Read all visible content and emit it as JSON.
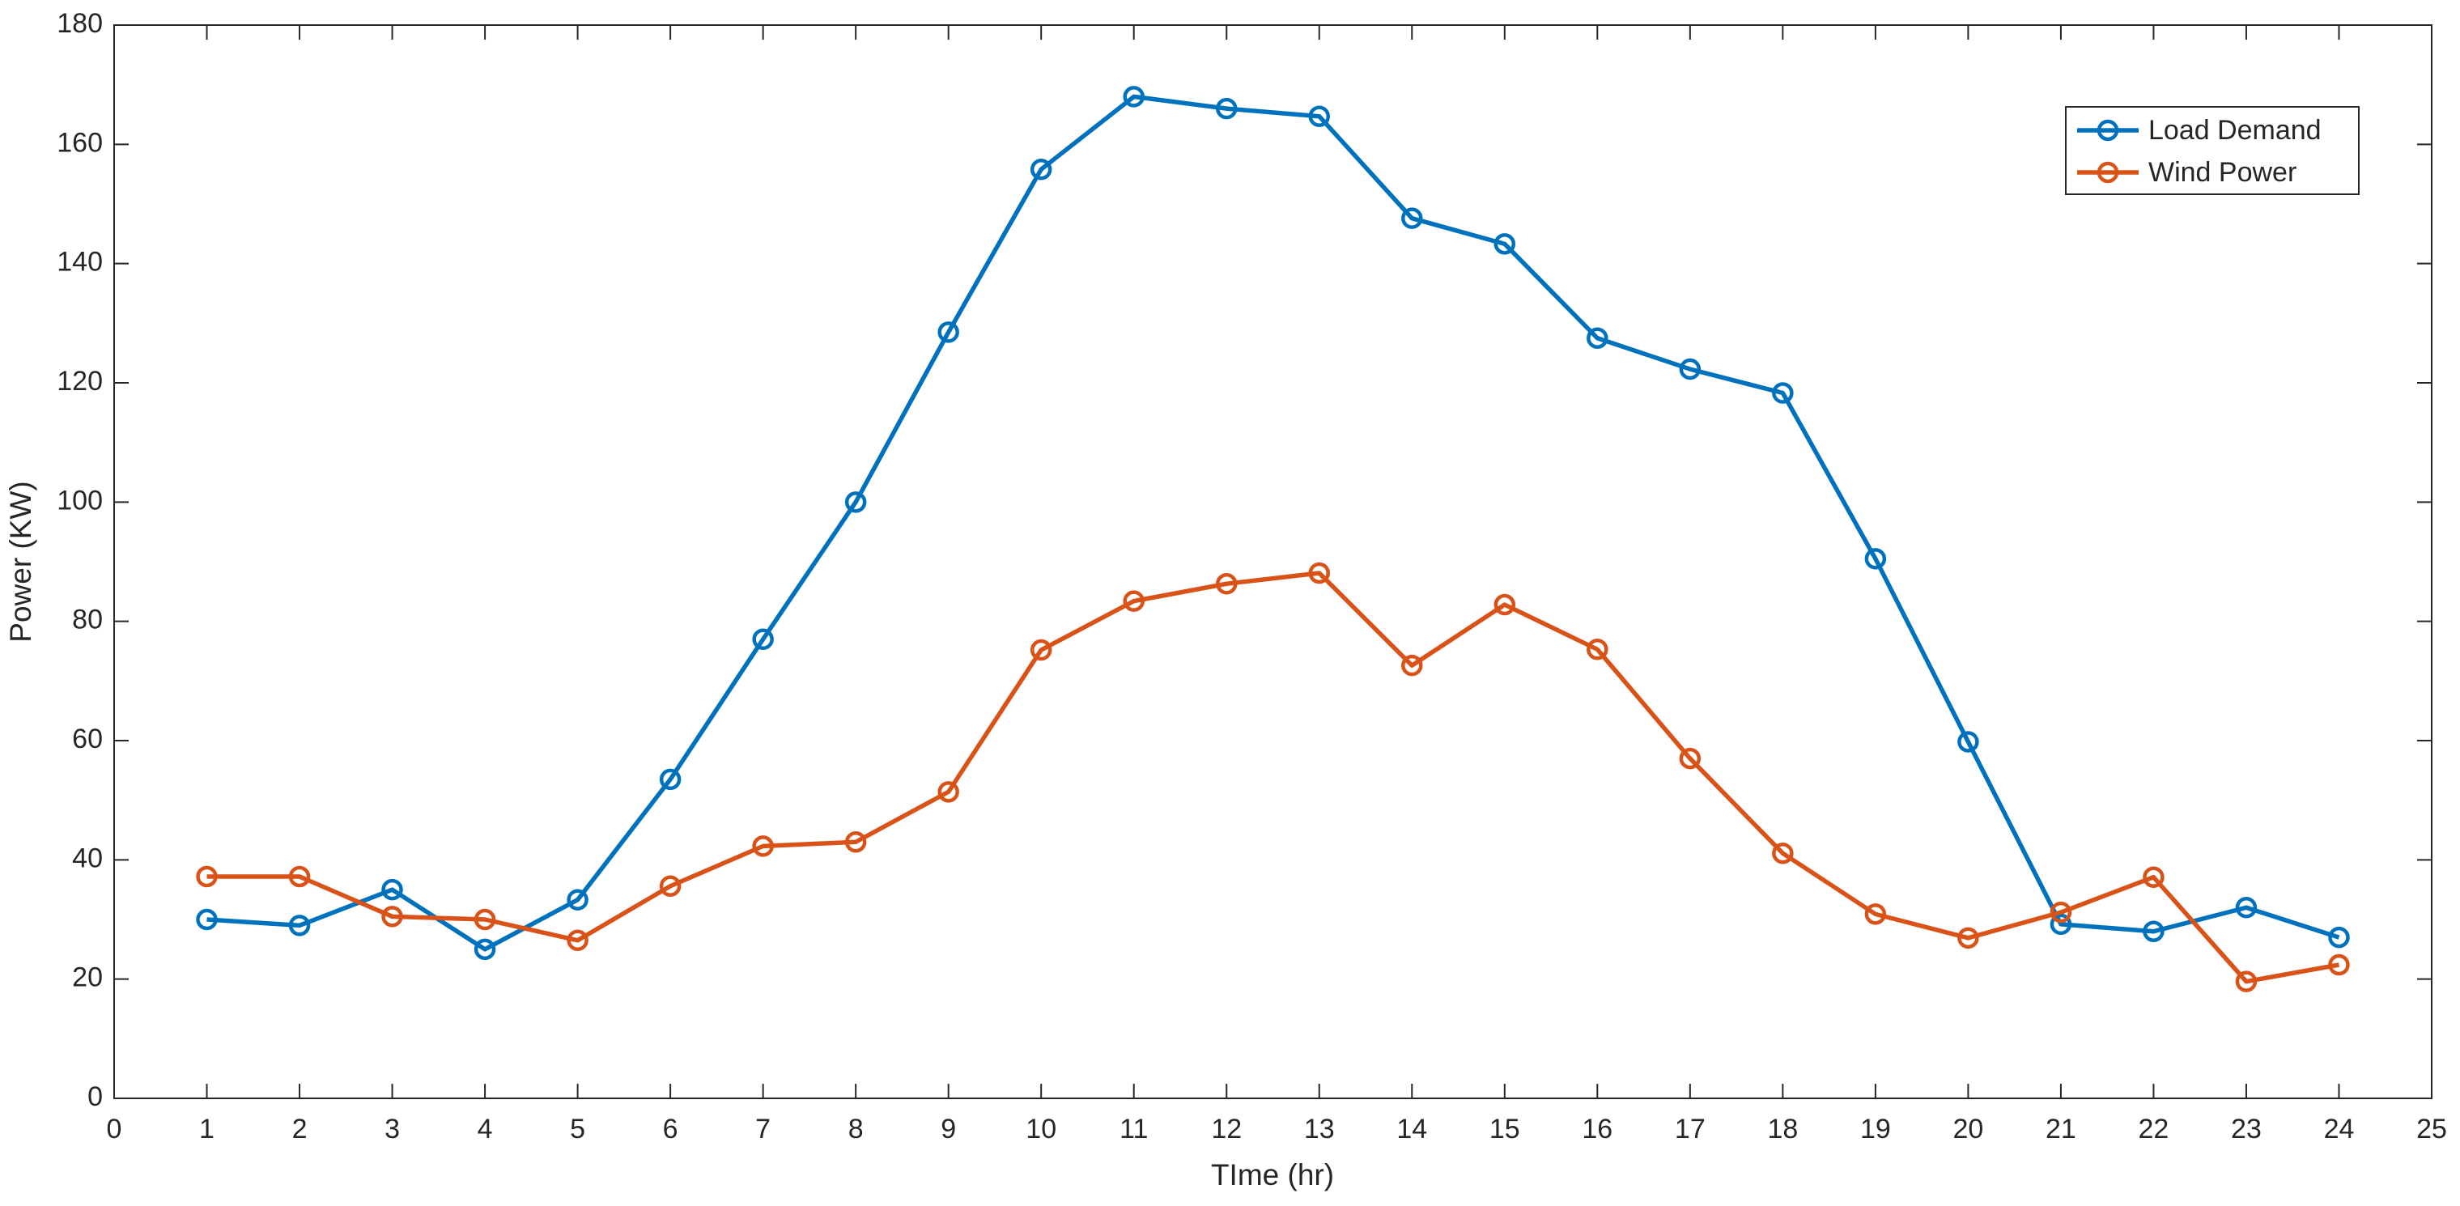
{
  "chart_data": {
    "type": "line",
    "x_label": "TIme (hr)",
    "y_label": "Power (KW)",
    "x": [
      1,
      2,
      3,
      4,
      5,
      6,
      7,
      8,
      9,
      10,
      11,
      12,
      13,
      14,
      15,
      16,
      17,
      18,
      19,
      20,
      21,
      22,
      23,
      24
    ],
    "series": [
      {
        "name": "Load Demand",
        "color": "#0072BD",
        "values": [
          30,
          29,
          35,
          25,
          33.3,
          53.5,
          77,
          100,
          128.5,
          155.8,
          168,
          166,
          164.7,
          147.6,
          143.3,
          127.5,
          122.3,
          118.3,
          90.5,
          59.8,
          29.2,
          28,
          32,
          27
        ]
      },
      {
        "name": "Wind Power",
        "color": "#D95319",
        "values": [
          37.2,
          37.2,
          30.5,
          30,
          26.5,
          35.6,
          42.3,
          43,
          51.4,
          75.2,
          83.4,
          86.3,
          88.1,
          72.6,
          82.8,
          75.3,
          57,
          41.1,
          30.9,
          26.9,
          31.2,
          37.1,
          19.6,
          22.4
        ]
      }
    ],
    "xlim": [
      0,
      25
    ],
    "xticks": [
      0,
      1,
      2,
      3,
      4,
      5,
      6,
      7,
      8,
      9,
      10,
      11,
      12,
      13,
      14,
      15,
      16,
      17,
      18,
      19,
      20,
      21,
      22,
      23,
      24,
      25
    ],
    "ylim": [
      0,
      180
    ],
    "yticks": [
      0,
      20,
      40,
      60,
      80,
      100,
      120,
      140,
      160,
      180
    ],
    "grid": false,
    "legend": "upper right"
  }
}
